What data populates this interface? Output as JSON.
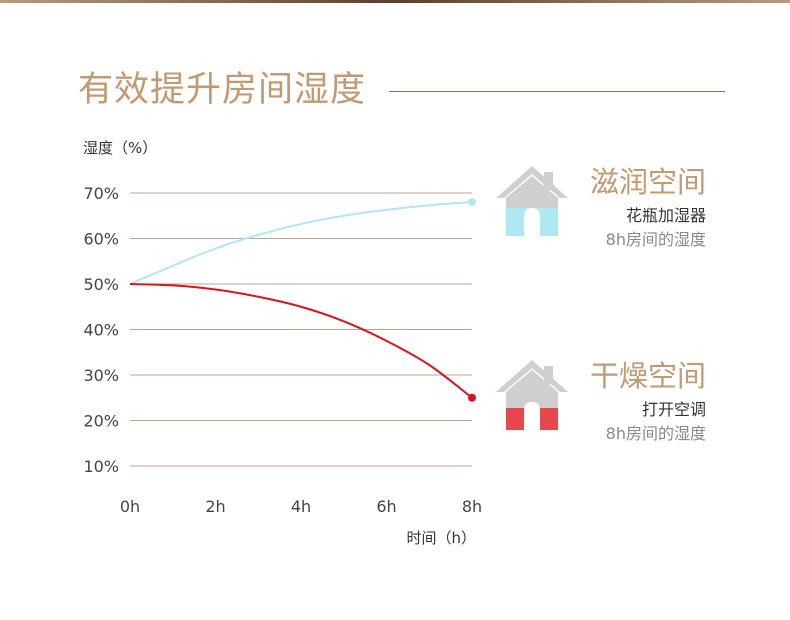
{
  "page_title": "有效提升房间湿度",
  "colors": {
    "title": "#c19a72",
    "grid": "#b9a48e",
    "humid_series": "#aee9f2",
    "dry_series": "#d8141f",
    "house_gray": "#cfcfcf"
  },
  "chart_data": {
    "type": "line",
    "ylabel": "湿度（%）",
    "xlabel": "时间（h）",
    "x_ticks": [
      "0h",
      "2h",
      "4h",
      "6h",
      "8h"
    ],
    "y_ticks": [
      "10%",
      "20%",
      "30%",
      "40%",
      "50%",
      "60%",
      "70%"
    ],
    "xlim": [
      0,
      8
    ],
    "ylim": [
      10,
      70
    ],
    "grid": true,
    "series": [
      {
        "name": "滋润空间",
        "color": "#aee9f2",
        "x": [
          0,
          1,
          2,
          3,
          4,
          5,
          6,
          7,
          8
        ],
        "y": [
          50,
          54,
          57.8,
          60.8,
          63.2,
          65,
          66.3,
          67.3,
          68
        ]
      },
      {
        "name": "干燥空间",
        "color": "#d8141f",
        "x": [
          0,
          1,
          2,
          3,
          4,
          5,
          6,
          7,
          8
        ],
        "y": [
          50,
          49.7,
          48.8,
          47.2,
          45,
          41.8,
          37.5,
          32.2,
          25
        ]
      }
    ]
  },
  "legend": {
    "humid": {
      "name": "滋润空间",
      "device": "花瓶加湿器",
      "desc": "8h房间的湿度",
      "icon": "house-icon",
      "fill_color": "#aee9f2"
    },
    "dry": {
      "name": "干燥空间",
      "device": "打开空调",
      "desc": "8h房间的湿度",
      "icon": "house-icon",
      "fill_color": "#e8474c"
    }
  }
}
